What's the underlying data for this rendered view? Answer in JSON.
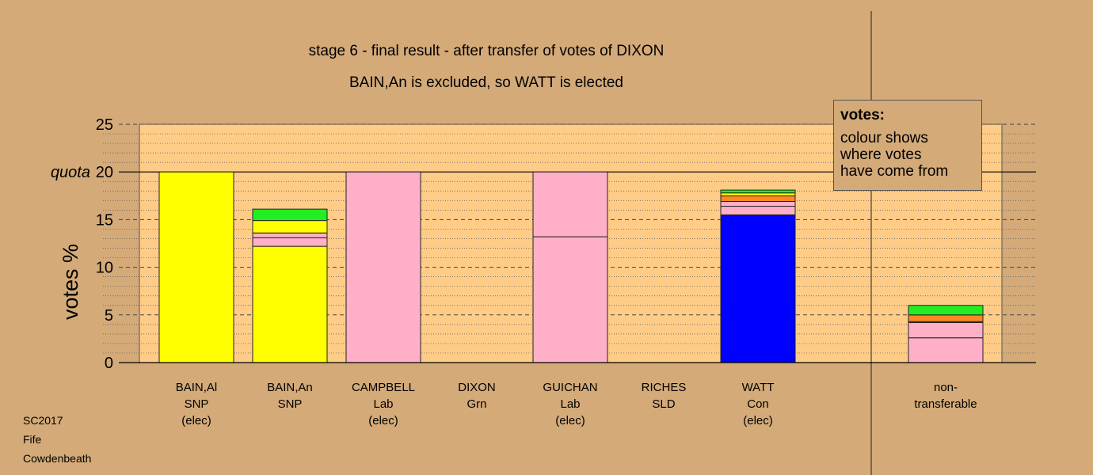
{
  "titles": {
    "line1": "stage 6 - final result - after transfer of votes of DIXON",
    "line2": "BAIN,An is excluded, so WATT is elected"
  },
  "legend": {
    "title": "votes:",
    "lines": [
      "colour shows",
      "where votes",
      "have come from"
    ]
  },
  "source": {
    "line1": "SC2017",
    "line2": "Fife",
    "line3": "Cowdenbeath"
  },
  "colors": {
    "background": "#d4aa78",
    "plot_background": "#ffcc88",
    "SNP": "#ffff00",
    "Lab": "#ffb0c8",
    "Con": "#0000ff",
    "Grn": "#22ee22",
    "SLD": "#ff8822"
  },
  "chart_data": {
    "type": "bar",
    "stacked": true,
    "ylabel": "votes %",
    "ylim": [
      0,
      25
    ],
    "yticks": [
      0,
      5,
      10,
      15,
      20,
      25
    ],
    "quota_label": "quota",
    "quota": 20,
    "grid": true,
    "legend_position": "top-right",
    "categories": [
      {
        "lines": [
          "BAIN,Al",
          "SNP",
          "(elec)"
        ],
        "segments": [
          {
            "from": "SNP",
            "value": 20
          }
        ]
      },
      {
        "lines": [
          "BAIN,An",
          "SNP"
        ],
        "segments": [
          {
            "from": "SNP",
            "value": 12.2
          },
          {
            "from": "Lab",
            "value": 0.9
          },
          {
            "from": "Lab",
            "value": 0.5
          },
          {
            "from": "SNP",
            "value": 1.3
          },
          {
            "from": "Grn",
            "value": 1.2
          }
        ]
      },
      {
        "lines": [
          "CAMPBELL",
          "Lab",
          "(elec)"
        ],
        "segments": [
          {
            "from": "Lab",
            "value": 20
          }
        ]
      },
      {
        "lines": [
          "DIXON",
          "Grn"
        ],
        "segments": []
      },
      {
        "lines": [
          "GUICHAN",
          "Lab",
          "(elec)"
        ],
        "segments": [
          {
            "from": "Lab",
            "value": 13.2
          },
          {
            "from": "Lab",
            "value": 6.8
          }
        ]
      },
      {
        "lines": [
          "RICHES",
          "SLD"
        ],
        "segments": []
      },
      {
        "lines": [
          "WATT",
          "Con",
          "(elec)"
        ],
        "segments": [
          {
            "from": "Con",
            "value": 15.5
          },
          {
            "from": "Lab",
            "value": 0.9
          },
          {
            "from": "Lab",
            "value": 0.5
          },
          {
            "from": "SLD",
            "value": 0.6
          },
          {
            "from": "SNP",
            "value": 0.3
          },
          {
            "from": "Grn",
            "value": 0.3
          }
        ]
      },
      {
        "lines": [
          "non-",
          "transferable"
        ],
        "segments": [
          {
            "from": "Lab",
            "value": 2.6
          },
          {
            "from": "Lab",
            "value": 1.6
          },
          {
            "from": "SLD",
            "value": 0.1
          },
          {
            "from": "SLD",
            "value": 0.7
          },
          {
            "from": "Grn",
            "value": 1.0
          }
        ]
      }
    ]
  }
}
